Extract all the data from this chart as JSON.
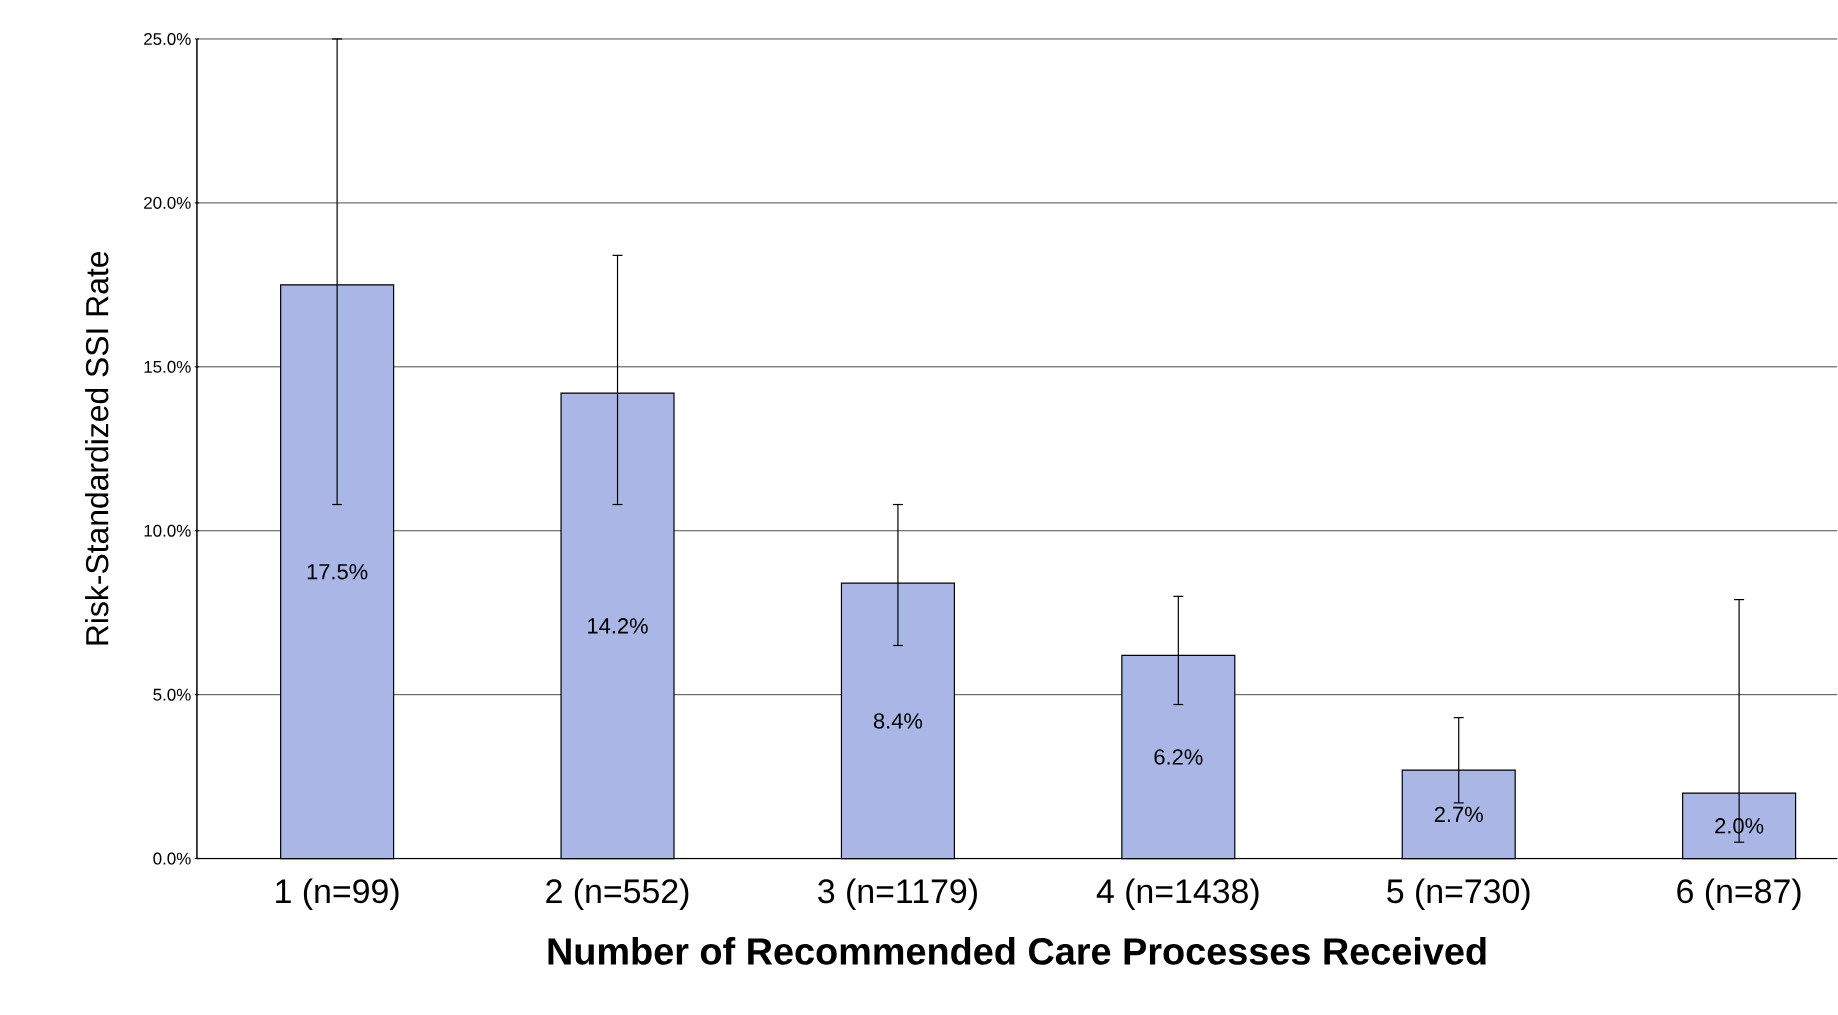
{
  "chart_data": {
    "type": "bar",
    "xlabel": "Number of Recommended Care Processes Received",
    "ylabel": "Risk-Standardized SSI Rate",
    "categories": [
      "1 (n=99)",
      "2 (n=552)",
      "3 (n=1179)",
      "4 (n=1438)",
      "5 (n=730)",
      "6 (n=87)"
    ],
    "values": [
      17.5,
      14.2,
      8.4,
      6.2,
      2.7,
      2.0
    ],
    "value_labels": [
      "17.5%",
      "14.2%",
      "8.4%",
      "6.2%",
      "2.7%",
      "2.0%"
    ],
    "errors": [
      [
        10.8,
        25.0
      ],
      [
        10.8,
        18.4
      ],
      [
        6.5,
        10.8
      ],
      [
        4.7,
        8.0
      ],
      [
        1.7,
        4.3
      ],
      [
        0.5,
        7.9
      ]
    ],
    "color": "#aab6e6",
    "ylim": [
      0,
      25
    ],
    "yticks": [
      {
        "value": 0,
        "label": "0.0%"
      },
      {
        "value": 5,
        "label": "5.0%"
      },
      {
        "value": 10,
        "label": "10.0%"
      },
      {
        "value": 15,
        "label": "15.0%"
      },
      {
        "value": 20,
        "label": "20.0%"
      },
      {
        "value": 25,
        "label": "25.0%"
      }
    ],
    "grid": "y"
  }
}
